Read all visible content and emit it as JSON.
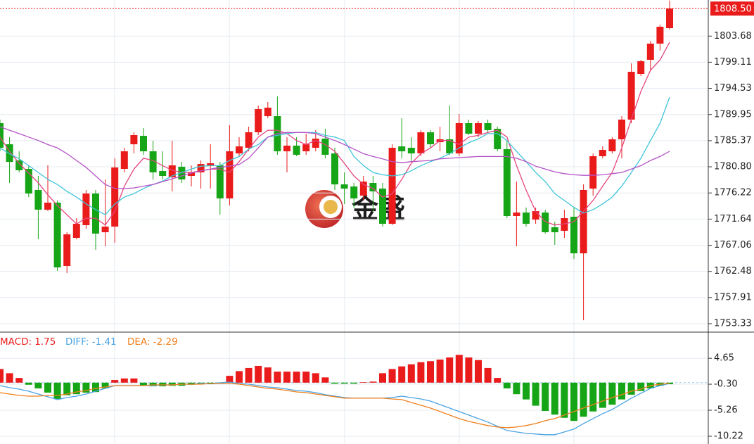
{
  "chart_data": [
    {
      "type": "candlestick",
      "up_color": "#ea1b1b",
      "down_color": "#16a516",
      "open": [
        1788.44,
        1784.74,
        1781.91,
        1780.43,
        1776.74,
        1773.29,
        1774.52,
        1763.43,
        1768.36,
        1770.58,
        1776.12,
        1769.34,
        1770.33,
        1780.43,
        1784.74,
        1786.22,
        1783.51,
        1780.06,
        1778.95,
        1780.8,
        1779.2,
        1779.82,
        1781.05,
        1781.05,
        1775.26,
        1783.14,
        1784.13,
        1786.84,
        1789.67,
        1789.67,
        1783.51,
        1784.5,
        1783.51,
        1784.13,
        1785.73,
        1783.14,
        1777.72,
        1777.35,
        1775.75,
        1777.97,
        1776.98,
        1770.82,
        1784.37,
        1784.13,
        1783.14,
        1786.84,
        1785.11,
        1785.61,
        1783.14,
        1788.44,
        1786.59,
        1788.44,
        1787.45,
        1783.88,
        1772.18,
        1772.79,
        1771.56,
        1772.79,
        1770.21,
        1769.59,
        1772.05,
        1765.65,
        1776.98,
        1782.65,
        1783.51,
        1785.61,
        1789.06,
        1797.06,
        1799.53,
        1802.36,
        1805.07
      ],
      "high": [
        1789.06,
        1785.98,
        1783.51,
        1781.05,
        1779.2,
        1781.05,
        1774.89,
        1769.34,
        1771.81,
        1776.74,
        1776.74,
        1778.58,
        1782.28,
        1784.13,
        1786.84,
        1787.58,
        1785.36,
        1783.51,
        1785.36,
        1781.66,
        1781.05,
        1781.91,
        1784.74,
        1781.66,
        1788.07,
        1785.98,
        1787.82,
        1791.52,
        1792.14,
        1793.12,
        1785.98,
        1785.98,
        1786.59,
        1787.21,
        1787.45,
        1784.13,
        1779.82,
        1777.97,
        1779.2,
        1779.2,
        1777.97,
        1784.74,
        1789.3,
        1785.98,
        1787.21,
        1787.21,
        1787.82,
        1791.52,
        1790.04,
        1789.06,
        1788.81,
        1789.06,
        1787.82,
        1785.36,
        1778.21,
        1773.66,
        1773.66,
        1773.29,
        1771.19,
        1773.29,
        1773.66,
        1777.72,
        1783.14,
        1784.37,
        1785.98,
        1789.67,
        1798.91,
        1799.53,
        1802.85,
        1805.69,
        1809.9
      ],
      "low": [
        1783.51,
        1777.97,
        1779.82,
        1775.5,
        1768.11,
        1773.04,
        1762.57,
        1762.2,
        1768.11,
        1769.96,
        1766.26,
        1766.88,
        1767.5,
        1779.82,
        1783.14,
        1782.9,
        1778.58,
        1778.58,
        1776.49,
        1777.97,
        1777.35,
        1776.98,
        1776.98,
        1772.42,
        1774.03,
        1782.65,
        1783.51,
        1786.35,
        1789.3,
        1782.9,
        1779.82,
        1782.65,
        1782.9,
        1783.51,
        1782.28,
        1776.74,
        1774.27,
        1773.66,
        1774.89,
        1773.04,
        1770.33,
        1770.58,
        1782.28,
        1781.66,
        1782.65,
        1784.13,
        1783.51,
        1782.9,
        1782.65,
        1786.35,
        1785.98,
        1786.84,
        1783.51,
        1771.81,
        1766.88,
        1770.33,
        1770.82,
        1769.1,
        1767.13,
        1768.36,
        1764.66,
        1753.94,
        1775.75,
        1782.28,
        1783.14,
        1782.28,
        1788.44,
        1796.69,
        1797.68,
        1801.13,
        1804.83
      ],
      "close": [
        1784.13,
        1781.66,
        1780.19,
        1776.12,
        1773.29,
        1774.52,
        1763.18,
        1768.97,
        1770.82,
        1776.12,
        1769.1,
        1770.33,
        1780.68,
        1783.51,
        1786.35,
        1783.51,
        1779.82,
        1779.2,
        1781.05,
        1778.58,
        1779.82,
        1781.29,
        1781.42,
        1775.26,
        1783.51,
        1784.37,
        1786.84,
        1790.9,
        1791.15,
        1783.51,
        1784.5,
        1782.9,
        1784.74,
        1785.73,
        1782.9,
        1777.72,
        1776.98,
        1775.26,
        1778.21,
        1776.49,
        1770.82,
        1784.13,
        1783.51,
        1783.14,
        1786.84,
        1784.74,
        1785.61,
        1783.14,
        1788.44,
        1786.59,
        1788.44,
        1787.21,
        1783.88,
        1772.18,
        1772.79,
        1770.82,
        1773.04,
        1769.34,
        1769.34,
        1771.81,
        1765.65,
        1776.74,
        1782.65,
        1783.76,
        1785.61,
        1789.06,
        1797.43,
        1799.28,
        1802.36,
        1805.32,
        1808.5
      ],
      "lines": [
        {
          "color": "#e6457f",
          "values": [
            1786.0,
            1783.5,
            1781.4,
            1779.7,
            1778.0,
            1775.9,
            1774.0,
            1772.4,
            1770.8,
            1771.8,
            1771.8,
            1770.6,
            1773.0,
            1777.4,
            1780.4,
            1782.3,
            1781.9,
            1781.0,
            1780.2,
            1779.8,
            1779.8,
            1780.1,
            1780.4,
            1780.4,
            1779.8,
            1781.7,
            1783.9,
            1786.0,
            1787.2,
            1787.2,
            1786.6,
            1785.4,
            1784.7,
            1785.4,
            1784.7,
            1783.5,
            1781.4,
            1779.2,
            1777.7,
            1777.0,
            1775.5,
            1776.1,
            1778.6,
            1781.4,
            1783.1,
            1784.1,
            1785.4,
            1785.4,
            1784.7,
            1786.0,
            1786.3,
            1786.8,
            1787.2,
            1786.0,
            1781.0,
            1776.7,
            1773.0,
            1771.2,
            1770.6,
            1770.8,
            1771.2,
            1773.0,
            1774.9,
            1777.4,
            1779.8,
            1784.1,
            1789.1,
            1794.0,
            1797.7,
            1799.5,
            1802.6
          ]
        },
        {
          "color": "#3fc4d8",
          "values": [
            1784.1,
            1783.1,
            1782.2,
            1781.0,
            1779.8,
            1778.6,
            1777.7,
            1776.5,
            1775.5,
            1774.3,
            1773.3,
            1772.4,
            1774.3,
            1775.5,
            1776.1,
            1777.0,
            1777.7,
            1778.3,
            1779.2,
            1779.8,
            1780.4,
            1780.9,
            1781.0,
            1781.0,
            1781.9,
            1782.6,
            1783.9,
            1784.7,
            1786.0,
            1786.3,
            1786.6,
            1786.8,
            1786.8,
            1786.8,
            1786.3,
            1786.0,
            1785.4,
            1782.6,
            1781.0,
            1779.8,
            1779.4,
            1779.2,
            1779.4,
            1780.1,
            1781.0,
            1781.7,
            1782.3,
            1783.1,
            1784.1,
            1785.0,
            1785.7,
            1786.6,
            1786.6,
            1785.4,
            1783.5,
            1781.7,
            1779.8,
            1778.2,
            1776.1,
            1774.9,
            1773.7,
            1772.7,
            1773.3,
            1774.3,
            1775.5,
            1777.4,
            1779.8,
            1782.3,
            1785.4,
            1788.4,
            1793.0
          ]
        },
        {
          "color": "#b452c6",
          "values": [
            1787.8,
            1787.2,
            1786.6,
            1786.0,
            1785.4,
            1784.7,
            1784.1,
            1783.1,
            1781.9,
            1780.7,
            1779.2,
            1777.7,
            1777.0,
            1777.0,
            1777.1,
            1777.4,
            1777.7,
            1778.2,
            1778.7,
            1779.2,
            1779.7,
            1780.1,
            1780.4,
            1780.7,
            1780.9,
            1781.2,
            1782.3,
            1784.1,
            1786.0,
            1786.6,
            1786.8,
            1786.8,
            1786.8,
            1786.6,
            1786.0,
            1785.4,
            1784.7,
            1783.9,
            1783.1,
            1782.6,
            1782.2,
            1781.7,
            1781.5,
            1781.7,
            1781.8,
            1781.9,
            1782.2,
            1782.3,
            1782.4,
            1782.5,
            1782.6,
            1782.6,
            1782.6,
            1782.6,
            1782.3,
            1781.7,
            1780.9,
            1780.4,
            1779.9,
            1779.6,
            1779.4,
            1779.3,
            1779.3,
            1779.4,
            1779.6,
            1779.8,
            1780.4,
            1781.0,
            1781.9,
            1782.6,
            1783.5
          ]
        }
      ],
      "ylim": [
        1752.1,
        1810.0
      ],
      "yticks": [
        1803.68,
        1799.11,
        1794.53,
        1789.95,
        1785.37,
        {
          "value": 1780.8,
          "label": "1780.80"
        },
        1776.22,
        1771.64,
        1767.06,
        1762.48,
        1757.91,
        1753.33
      ],
      "last_price": {
        "value": 1808.5,
        "label": "1808.50"
      },
      "grid": true
    },
    {
      "type": "macd",
      "series": [
        {
          "name": "MACD: 1.75",
          "kind": "bar",
          "color": "#ea1b1b",
          "negative_color": "#16a516",
          "values": [
            2.6,
            1.8,
            0.9,
            -0.4,
            -1.1,
            -1.9,
            -3.1,
            -2.4,
            -2.2,
            -1.9,
            -1.8,
            -1.1,
            0.5,
            0.8,
            0.8,
            -0.6,
            -0.7,
            -0.7,
            -0.6,
            -0.6,
            -0.4,
            -0.3,
            -0.3,
            -0.2,
            1.3,
            2.2,
            2.8,
            3.2,
            2.9,
            2.1,
            2.1,
            2.1,
            2.1,
            1.8,
            1.0,
            -0.2,
            -0.2,
            -0.2,
            0.1,
            0.2,
            1.8,
            2.6,
            3.1,
            3.5,
            3.9,
            4.1,
            4.4,
            4.8,
            5.3,
            4.8,
            4.3,
            2.8,
            0.9,
            -1.1,
            -2.2,
            -3.2,
            -4.4,
            -5.4,
            -6.1,
            -6.7,
            -7.3,
            -6.5,
            -5.5,
            -4.8,
            -4.2,
            -3.2,
            -2.3,
            -1.6,
            -1.1,
            -0.6,
            -0.3
          ]
        },
        {
          "name": "DIFF: -1.41",
          "kind": "line",
          "color": "#4aa3e2",
          "values": [
            -0.56,
            -0.96,
            -1.23,
            -1.63,
            -2.17,
            -2.7,
            -3.24,
            -2.84,
            -2.57,
            -2.17,
            -1.63,
            -1.1,
            -0.56,
            -0.56,
            -0.56,
            -0.56,
            -0.56,
            -0.43,
            -0.43,
            -0.29,
            -0.29,
            -0.16,
            -0.16,
            -0.03,
            0.11,
            -0.16,
            -0.29,
            -0.56,
            -0.83,
            -0.96,
            -1.23,
            -1.5,
            -1.63,
            -1.9,
            -2.3,
            -2.57,
            -2.84,
            -2.97,
            -2.97,
            -2.97,
            -2.97,
            -2.84,
            -2.57,
            -2.84,
            -3.11,
            -3.51,
            -4.18,
            -4.85,
            -5.52,
            -6.18,
            -6.85,
            -7.52,
            -8.33,
            -9.13,
            -9.4,
            -9.67,
            -9.8,
            -9.93,
            -9.93,
            -9.4,
            -8.86,
            -7.79,
            -6.85,
            -5.92,
            -5.11,
            -4.04,
            -2.97,
            -2.03,
            -1.1,
            -0.56,
            -0.16
          ]
        },
        {
          "name": "DEA: -2.29",
          "kind": "line",
          "color": "#f07f1c",
          "values": [
            -1.9,
            -2.17,
            -2.44,
            -2.57,
            -2.57,
            -2.44,
            -2.44,
            -2.17,
            -1.77,
            -1.5,
            -1.1,
            -0.83,
            -0.56,
            -0.56,
            -0.56,
            -0.56,
            -0.43,
            -0.43,
            -0.43,
            -0.29,
            -0.29,
            -0.29,
            -0.16,
            -0.16,
            -0.16,
            -0.29,
            -0.56,
            -0.83,
            -1.1,
            -1.23,
            -1.5,
            -1.77,
            -1.9,
            -2.17,
            -2.44,
            -2.7,
            -2.97,
            -2.97,
            -2.97,
            -2.97,
            -2.97,
            -3.11,
            -3.24,
            -3.78,
            -4.31,
            -4.85,
            -5.52,
            -6.18,
            -6.85,
            -7.39,
            -7.79,
            -8.19,
            -8.46,
            -8.59,
            -8.46,
            -8.19,
            -7.79,
            -7.26,
            -6.85,
            -6.18,
            -5.52,
            -4.85,
            -4.18,
            -3.51,
            -2.84,
            -2.3,
            -1.63,
            -1.23,
            -0.56,
            -0.29,
            -0.16
          ]
        }
      ],
      "ylim": [
        -11.7,
        9.5
      ],
      "yticks": [
        4.65,
        {
          "value": -0.3,
          "label": "-0.30"
        },
        -5.26,
        -10.22
      ],
      "grid": true
    }
  ],
  "watermark": "金盛"
}
